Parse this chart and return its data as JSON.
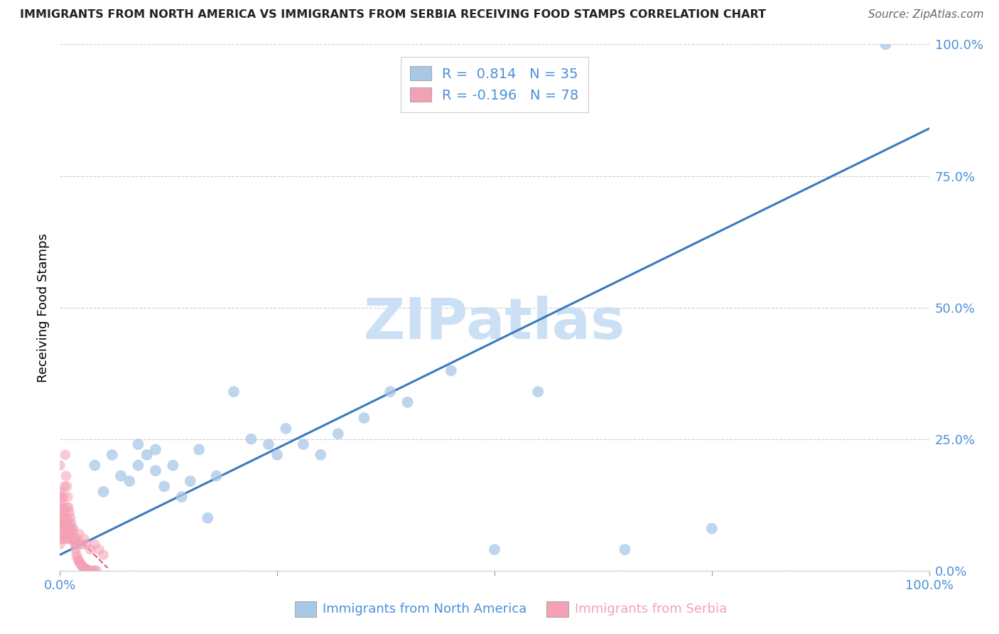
{
  "title": "IMMIGRANTS FROM NORTH AMERICA VS IMMIGRANTS FROM SERBIA RECEIVING FOOD STAMPS CORRELATION CHART",
  "source": "Source: ZipAtlas.com",
  "ylabel_label": "Receiving Food Stamps",
  "legend_blue_r": "R =  0.814",
  "legend_blue_n": "N = 35",
  "legend_pink_r": "R = -0.196",
  "legend_pink_n": "N = 78",
  "legend_blue_label": "Immigrants from North America",
  "legend_pink_label": "Immigrants from Serbia",
  "blue_color": "#a8c8e8",
  "pink_color": "#f4a0b5",
  "line_blue_color": "#3a7abf",
  "line_pink_color": "#e05080",
  "tick_color": "#4a90d9",
  "watermark_text": "ZIPatlas",
  "watermark_color": "#cce0f5",
  "background_color": "#ffffff",
  "grid_color": "#cccccc",
  "y_ticks": [
    0.0,
    0.25,
    0.5,
    0.75,
    1.0
  ],
  "y_tick_labels": [
    "0.0%",
    "25.0%",
    "50.0%",
    "75.0%",
    "100.0%"
  ],
  "x_ticks": [
    0.0,
    0.25,
    0.5,
    0.75,
    1.0
  ],
  "x_tick_labels": [
    "0.0%",
    "",
    "",
    "",
    "100.0%"
  ],
  "blue_scatter_x": [
    0.02,
    0.04,
    0.05,
    0.06,
    0.07,
    0.08,
    0.09,
    0.09,
    0.1,
    0.11,
    0.11,
    0.12,
    0.13,
    0.14,
    0.15,
    0.16,
    0.17,
    0.18,
    0.2,
    0.22,
    0.24,
    0.25,
    0.26,
    0.28,
    0.3,
    0.32,
    0.35,
    0.38,
    0.4,
    0.45,
    0.5,
    0.55,
    0.65,
    0.75,
    0.95
  ],
  "blue_scatter_y": [
    0.05,
    0.2,
    0.15,
    0.22,
    0.18,
    0.17,
    0.2,
    0.24,
    0.22,
    0.19,
    0.23,
    0.16,
    0.2,
    0.14,
    0.17,
    0.23,
    0.1,
    0.18,
    0.34,
    0.25,
    0.24,
    0.22,
    0.27,
    0.24,
    0.22,
    0.26,
    0.29,
    0.34,
    0.32,
    0.38,
    0.04,
    0.34,
    0.04,
    0.08,
    1.0
  ],
  "pink_scatter_x": [
    0.0,
    0.0,
    0.0,
    0.0,
    0.0,
    0.0,
    0.001,
    0.001,
    0.001,
    0.001,
    0.002,
    0.002,
    0.002,
    0.003,
    0.003,
    0.004,
    0.004,
    0.004,
    0.005,
    0.005,
    0.005,
    0.006,
    0.006,
    0.007,
    0.007,
    0.008,
    0.008,
    0.009,
    0.009,
    0.01,
    0.01,
    0.011,
    0.012,
    0.013,
    0.014,
    0.015,
    0.016,
    0.018,
    0.02,
    0.022,
    0.025,
    0.028,
    0.03,
    0.035,
    0.04,
    0.045,
    0.05,
    0.006,
    0.007,
    0.008,
    0.009,
    0.01,
    0.011,
    0.012,
    0.013,
    0.014,
    0.015,
    0.016,
    0.017,
    0.018,
    0.019,
    0.02,
    0.021,
    0.022,
    0.023,
    0.024,
    0.025,
    0.026,
    0.027,
    0.028,
    0.029,
    0.03,
    0.031,
    0.032,
    0.035,
    0.038,
    0.04,
    0.042
  ],
  "pink_scatter_y": [
    0.05,
    0.08,
    0.1,
    0.12,
    0.15,
    0.2,
    0.06,
    0.09,
    0.11,
    0.14,
    0.07,
    0.1,
    0.13,
    0.08,
    0.12,
    0.06,
    0.09,
    0.14,
    0.07,
    0.1,
    0.16,
    0.08,
    0.11,
    0.06,
    0.09,
    0.07,
    0.12,
    0.08,
    0.1,
    0.06,
    0.09,
    0.07,
    0.08,
    0.06,
    0.07,
    0.08,
    0.06,
    0.05,
    0.06,
    0.07,
    0.05,
    0.06,
    0.05,
    0.04,
    0.05,
    0.04,
    0.03,
    0.22,
    0.18,
    0.16,
    0.14,
    0.12,
    0.11,
    0.1,
    0.09,
    0.08,
    0.07,
    0.06,
    0.05,
    0.04,
    0.03,
    0.025,
    0.02,
    0.018,
    0.015,
    0.012,
    0.01,
    0.008,
    0.006,
    0.005,
    0.004,
    0.003,
    0.002,
    0.001,
    0.0,
    0.0,
    0.0,
    0.0
  ],
  "blue_line_x0": 0.0,
  "blue_line_x1": 1.0,
  "blue_line_y0": 0.03,
  "blue_line_y1": 0.84,
  "pink_line_x0": 0.0,
  "pink_line_x1": 0.055,
  "pink_line_y0": 0.095,
  "pink_line_y1": 0.005
}
